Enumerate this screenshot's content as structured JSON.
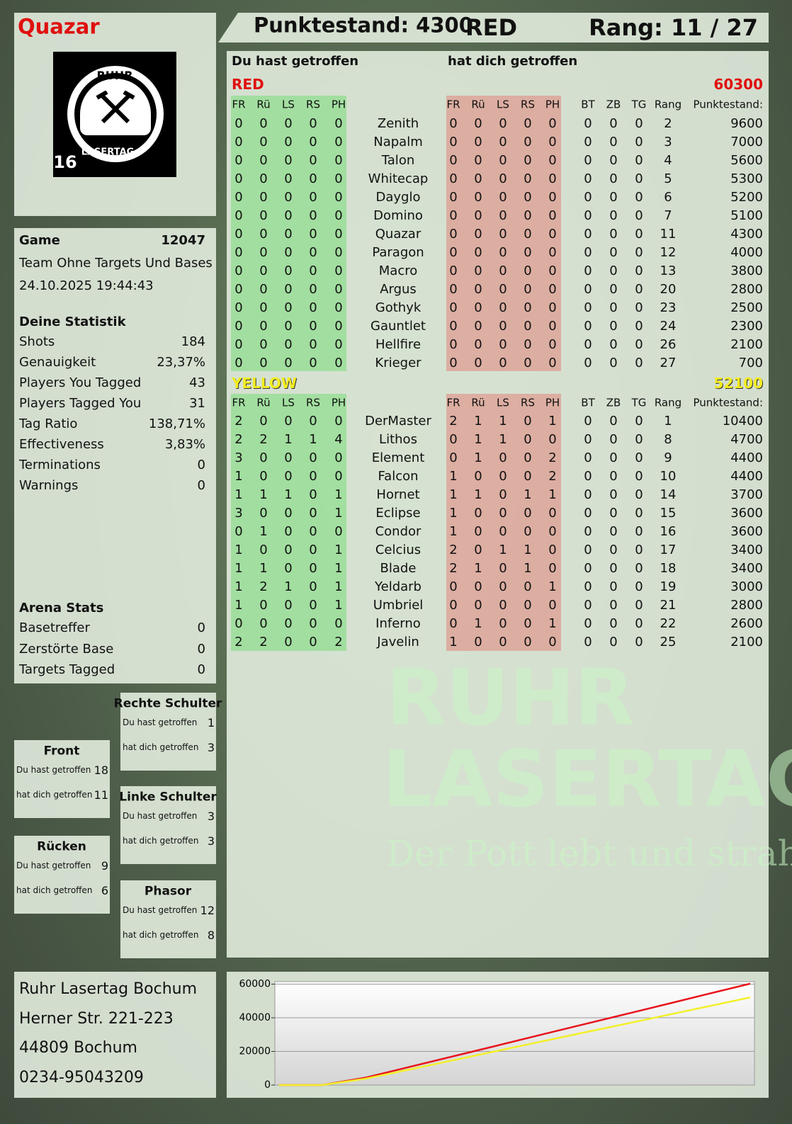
{
  "header": {
    "name": "Quazar",
    "score": "Punktestand: 4300",
    "team": "RED",
    "rank": "Rang: 11 / 27"
  },
  "logo": {
    "top": "RUHR",
    "bottom": "LASERTAG",
    "age": "16"
  },
  "watermark": {
    "line1": "RUHR",
    "line2": "LASERTAG",
    "slogan": "Der Pott lebt und strahlt"
  },
  "game": {
    "label": "Game",
    "id": "12047",
    "mode": "Team Ohne Targets Und Bases",
    "date": "24.10.2025 19:44:43"
  },
  "stats": {
    "title": "Deine Statistik",
    "rows": [
      [
        "Shots",
        "184"
      ],
      [
        "Genauigkeit",
        "23,37%"
      ],
      [
        "Players You Tagged",
        "43"
      ],
      [
        "Players Tagged You",
        "31"
      ],
      [
        "Tag Ratio",
        "138,71%"
      ],
      [
        "Effectiveness",
        "3,83%"
      ],
      [
        "Terminations",
        "0"
      ],
      [
        "Warnings",
        "0"
      ]
    ]
  },
  "arena": {
    "title": "Arena Stats",
    "rows": [
      [
        "Basetreffer",
        "0"
      ],
      [
        "Zerstörte Base",
        "0"
      ],
      [
        "Targets Tagged",
        "0"
      ]
    ]
  },
  "zones": [
    {
      "name": "Rechte Schulter",
      "rows": [
        [
          "Du hast getroffen",
          "1"
        ],
        [
          "hat dich getroffen",
          "3"
        ]
      ]
    },
    {
      "name": "Front",
      "rows": [
        [
          "Du hast getroffen",
          "18"
        ],
        [
          "hat dich getroffen",
          "11"
        ]
      ]
    },
    {
      "name": "Linke Schulter",
      "rows": [
        [
          "Du hast getroffen",
          "3"
        ],
        [
          "hat dich getroffen",
          "3"
        ]
      ]
    },
    {
      "name": "Rücken",
      "rows": [
        [
          "Du hast getroffen",
          "9"
        ],
        [
          "hat dich getroffen",
          "6"
        ]
      ]
    },
    {
      "name": "Phasor",
      "rows": [
        [
          "Du hast getroffen",
          "12"
        ],
        [
          "hat dich getroffen",
          "8"
        ]
      ]
    }
  ],
  "address": {
    "lines": [
      "Ruhr Lasertag Bochum",
      "Herner Str. 221-223",
      "44809 Bochum",
      "0234-95043209"
    ]
  },
  "table": {
    "given_heading": "Du hast getroffen",
    "received_heading": "hat dich getroffen",
    "teams": [
      {
        "name": "RED",
        "score": "60300",
        "columns": [
          "FR",
          "Rü",
          "LS",
          "RS",
          "PH",
          "FR",
          "Rü",
          "LS",
          "RS",
          "PH",
          "BT",
          "ZB",
          "TG",
          "Rang",
          "Punktestand:"
        ],
        "rows": [
          [
            0,
            0,
            0,
            0,
            0,
            "Zenith",
            0,
            0,
            0,
            0,
            0,
            0,
            0,
            0,
            2,
            9600
          ],
          [
            0,
            0,
            0,
            0,
            0,
            "Napalm",
            0,
            0,
            0,
            0,
            0,
            0,
            0,
            0,
            3,
            7000
          ],
          [
            0,
            0,
            0,
            0,
            0,
            "Talon",
            0,
            0,
            0,
            0,
            0,
            0,
            0,
            0,
            4,
            5600
          ],
          [
            0,
            0,
            0,
            0,
            0,
            "Whitecap",
            0,
            0,
            0,
            0,
            0,
            0,
            0,
            0,
            5,
            5300
          ],
          [
            0,
            0,
            0,
            0,
            0,
            "Dayglo",
            0,
            0,
            0,
            0,
            0,
            0,
            0,
            0,
            6,
            5200
          ],
          [
            0,
            0,
            0,
            0,
            0,
            "Domino",
            0,
            0,
            0,
            0,
            0,
            0,
            0,
            0,
            7,
            5100
          ],
          [
            0,
            0,
            0,
            0,
            0,
            "Quazar",
            0,
            0,
            0,
            0,
            0,
            0,
            0,
            0,
            11,
            4300
          ],
          [
            0,
            0,
            0,
            0,
            0,
            "Paragon",
            0,
            0,
            0,
            0,
            0,
            0,
            0,
            0,
            12,
            4000
          ],
          [
            0,
            0,
            0,
            0,
            0,
            "Macro",
            0,
            0,
            0,
            0,
            0,
            0,
            0,
            0,
            13,
            3800
          ],
          [
            0,
            0,
            0,
            0,
            0,
            "Argus",
            0,
            0,
            0,
            0,
            0,
            0,
            0,
            0,
            20,
            2800
          ],
          [
            0,
            0,
            0,
            0,
            0,
            "Gothyk",
            0,
            0,
            0,
            0,
            0,
            0,
            0,
            0,
            23,
            2500
          ],
          [
            0,
            0,
            0,
            0,
            0,
            "Gauntlet",
            0,
            0,
            0,
            0,
            0,
            0,
            0,
            0,
            24,
            2300
          ],
          [
            0,
            0,
            0,
            0,
            0,
            "Hellfire",
            0,
            0,
            0,
            0,
            0,
            0,
            0,
            0,
            26,
            2100
          ],
          [
            0,
            0,
            0,
            0,
            0,
            "Krieger",
            0,
            0,
            0,
            0,
            0,
            0,
            0,
            0,
            27,
            700
          ]
        ]
      },
      {
        "name": "YELLOW",
        "score": "52100",
        "columns": [
          "FR",
          "Rü",
          "LS",
          "RS",
          "PH",
          "FR",
          "Rü",
          "LS",
          "RS",
          "PH",
          "BT",
          "ZB",
          "TG",
          "Rang",
          "Punktestand:"
        ],
        "rows": [
          [
            2,
            0,
            0,
            0,
            0,
            "DerMaster",
            2,
            1,
            1,
            0,
            1,
            0,
            0,
            0,
            1,
            10400
          ],
          [
            2,
            2,
            1,
            1,
            4,
            "Lithos",
            0,
            1,
            1,
            0,
            0,
            0,
            0,
            0,
            8,
            4700
          ],
          [
            3,
            0,
            0,
            0,
            0,
            "Element",
            0,
            1,
            0,
            0,
            2,
            0,
            0,
            0,
            9,
            4400
          ],
          [
            1,
            0,
            0,
            0,
            0,
            "Falcon",
            1,
            0,
            0,
            0,
            2,
            0,
            0,
            0,
            10,
            4400
          ],
          [
            1,
            1,
            1,
            0,
            1,
            "Hornet",
            1,
            1,
            0,
            1,
            1,
            0,
            0,
            0,
            14,
            3700
          ],
          [
            3,
            0,
            0,
            0,
            1,
            "Eclipse",
            1,
            0,
            0,
            0,
            0,
            0,
            0,
            0,
            15,
            3600
          ],
          [
            0,
            1,
            0,
            0,
            0,
            "Condor",
            1,
            0,
            0,
            0,
            0,
            0,
            0,
            0,
            16,
            3600
          ],
          [
            1,
            0,
            0,
            0,
            1,
            "Celcius",
            2,
            0,
            1,
            1,
            0,
            0,
            0,
            0,
            17,
            3400
          ],
          [
            1,
            1,
            0,
            0,
            1,
            "Blade",
            2,
            1,
            0,
            1,
            0,
            0,
            0,
            0,
            18,
            3400
          ],
          [
            1,
            2,
            1,
            0,
            1,
            "Yeldarb",
            0,
            0,
            0,
            0,
            1,
            0,
            0,
            0,
            19,
            3000
          ],
          [
            1,
            0,
            0,
            0,
            1,
            "Umbriel",
            0,
            0,
            0,
            0,
            0,
            0,
            0,
            0,
            21,
            2800
          ],
          [
            0,
            0,
            0,
            0,
            0,
            "Inferno",
            0,
            1,
            0,
            0,
            1,
            0,
            0,
            0,
            22,
            2600
          ],
          [
            2,
            2,
            0,
            0,
            2,
            "Javelin",
            1,
            0,
            0,
            0,
            0,
            0,
            0,
            0,
            25,
            2100
          ]
        ]
      }
    ]
  },
  "chart_data": {
    "type": "line",
    "categories": [
      null,
      null,
      null,
      null,
      null,
      null,
      null,
      null,
      null,
      null,
      null,
      null
    ],
    "series": [
      {
        "color": "#e8141c",
        "values": [
          0,
          0,
          4300,
          10500,
          16700,
          22900,
          29200,
          35400,
          41600,
          47800,
          54100,
          60300
        ]
      },
      {
        "color": "#f2f02a",
        "values": [
          0,
          0,
          3700,
          9000,
          14400,
          19800,
          25200,
          30600,
          35900,
          41300,
          46700,
          52100
        ]
      }
    ],
    "ylim": [
      0,
      61500
    ],
    "yticks": [
      0,
      20000,
      40000,
      60000
    ],
    "grid": true
  }
}
